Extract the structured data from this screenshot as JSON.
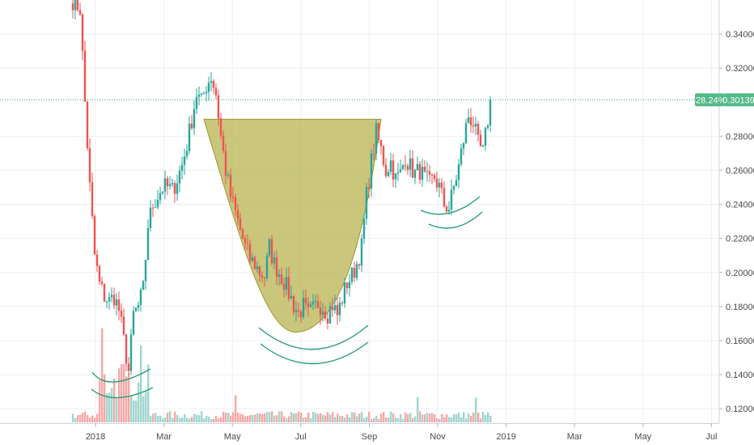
{
  "chart_data": {
    "type": "candlestick",
    "title": "",
    "xlabel": "",
    "ylabel": "",
    "ylim": [
      0.112,
      0.36
    ],
    "grid": true,
    "x_tick_labels": [
      "2018",
      "Mar",
      "May",
      "Jul",
      "Sep",
      "Nov",
      "2019",
      "Mar",
      "May",
      "Jul"
    ],
    "y_tick_labels": [
      "0.34000",
      "0.32000",
      "0.28000",
      "0.26000",
      "0.24000",
      "0.22000",
      "0.20000",
      "0.18000",
      "0.16000",
      "0.14000",
      "0.12000"
    ],
    "current_price": {
      "label": "0.30139",
      "change": "-28.24%",
      "value": 0.30139
    },
    "colors": {
      "up": "#26a69a",
      "down": "#ef5350",
      "volume_up": "#9fd6cf",
      "volume_down": "#f5a8a6",
      "cup_fill": "#b5b04a",
      "arc": "#2a9d7a",
      "price_line": "#26a69a",
      "grid": "#eceff2"
    },
    "path_points": [
      [
        0,
        0.36
      ],
      [
        3,
        0.355
      ],
      [
        5,
        0.3
      ],
      [
        7,
        0.25
      ],
      [
        9,
        0.21
      ],
      [
        11,
        0.193
      ],
      [
        13,
        0.186
      ],
      [
        15,
        0.183
      ],
      [
        17,
        0.186
      ],
      [
        19,
        0.178
      ],
      [
        21,
        0.16
      ],
      [
        23,
        0.142
      ],
      [
        25,
        0.175
      ],
      [
        27,
        0.18
      ],
      [
        29,
        0.19
      ],
      [
        31,
        0.228
      ],
      [
        33,
        0.24
      ],
      [
        35,
        0.245
      ],
      [
        37,
        0.25
      ],
      [
        39,
        0.25
      ],
      [
        41,
        0.248
      ],
      [
        43,
        0.255
      ],
      [
        45,
        0.263
      ],
      [
        47,
        0.275
      ],
      [
        49,
        0.29
      ],
      [
        51,
        0.305
      ],
      [
        53,
        0.3
      ],
      [
        55,
        0.31
      ],
      [
        57,
        0.315
      ],
      [
        59,
        0.305
      ],
      [
        61,
        0.28
      ],
      [
        63,
        0.26
      ],
      [
        65,
        0.245
      ],
      [
        67,
        0.235
      ],
      [
        69,
        0.225
      ],
      [
        71,
        0.215
      ],
      [
        73,
        0.208
      ],
      [
        75,
        0.205
      ],
      [
        77,
        0.2
      ],
      [
        79,
        0.198
      ],
      [
        81,
        0.215
      ],
      [
        83,
        0.205
      ],
      [
        85,
        0.2
      ],
      [
        87,
        0.195
      ],
      [
        89,
        0.188
      ],
      [
        91,
        0.181
      ],
      [
        93,
        0.176
      ],
      [
        95,
        0.18
      ],
      [
        97,
        0.175
      ],
      [
        99,
        0.178
      ],
      [
        101,
        0.182
      ],
      [
        103,
        0.18
      ],
      [
        105,
        0.176
      ],
      [
        107,
        0.181
      ],
      [
        109,
        0.175
      ],
      [
        111,
        0.185
      ],
      [
        113,
        0.194
      ],
      [
        115,
        0.198
      ],
      [
        117,
        0.205
      ],
      [
        119,
        0.215
      ],
      [
        121,
        0.245
      ],
      [
        123,
        0.265
      ],
      [
        125,
        0.282
      ],
      [
        127,
        0.272
      ],
      [
        129,
        0.26
      ],
      [
        131,
        0.265
      ],
      [
        133,
        0.255
      ],
      [
        135,
        0.258
      ],
      [
        137,
        0.268
      ],
      [
        139,
        0.262
      ],
      [
        141,
        0.258
      ],
      [
        143,
        0.26
      ],
      [
        145,
        0.255
      ],
      [
        147,
        0.252
      ],
      [
        149,
        0.256
      ],
      [
        151,
        0.25
      ],
      [
        153,
        0.24
      ],
      [
        155,
        0.238
      ],
      [
        157,
        0.25
      ],
      [
        159,
        0.262
      ],
      [
        161,
        0.278
      ],
      [
        163,
        0.292
      ],
      [
        165,
        0.288
      ],
      [
        167,
        0.275
      ],
      [
        169,
        0.27
      ],
      [
        171,
        0.29
      ],
      [
        172,
        0.30139
      ]
    ],
    "cup": {
      "rim_price": 0.29,
      "bottom_price": 0.165
    }
  }
}
